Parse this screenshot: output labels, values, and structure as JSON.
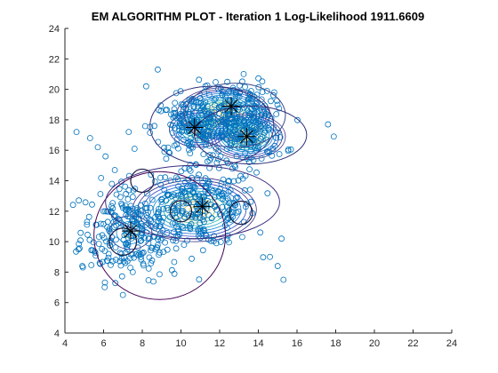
{
  "chart_data": {
    "type": "scatter",
    "title": "EM ALGORITHM PLOT - Iteration 1 Log-Likelihood 1911.6609",
    "xlabel": "",
    "ylabel": "",
    "xlim": [
      4,
      24
    ],
    "ylim": [
      4,
      24
    ],
    "xticks": [
      4,
      6,
      8,
      10,
      12,
      14,
      16,
      18,
      20,
      22,
      24
    ],
    "yticks": [
      4,
      6,
      8,
      10,
      12,
      14,
      16,
      18,
      20,
      22,
      24
    ],
    "grid": false,
    "legend": "none",
    "marker_color": "#0072BD",
    "clusters": [
      {
        "cx": 7.4,
        "cy": 10.7,
        "sx": 1.3,
        "sy": 1.6,
        "n": 260
      },
      {
        "cx": 11.1,
        "cy": 12.3,
        "sx": 1.4,
        "sy": 1.3,
        "n": 240
      },
      {
        "cx": 10.7,
        "cy": 17.5,
        "sx": 1.1,
        "sy": 1.0,
        "n": 180
      },
      {
        "cx": 12.6,
        "cy": 18.9,
        "sx": 1.0,
        "sy": 0.9,
        "n": 160
      },
      {
        "cx": 13.4,
        "cy": 16.9,
        "sx": 1.0,
        "sy": 0.9,
        "n": 150
      }
    ],
    "outliers": [
      [
        4.6,
        17.2
      ],
      [
        5.3,
        16.8
      ],
      [
        5.7,
        16.2
      ],
      [
        6.1,
        15.6
      ],
      [
        7.3,
        17.2
      ],
      [
        7.6,
        16.1
      ],
      [
        8.8,
        21.3
      ],
      [
        8.2,
        20.2
      ],
      [
        17.6,
        17.7
      ],
      [
        17.9,
        16.9
      ],
      [
        15.3,
        7.5
      ],
      [
        15.0,
        8.4
      ],
      [
        14.6,
        9.0
      ],
      [
        15.2,
        10.2
      ],
      [
        4.7,
        9.5
      ],
      [
        5.8,
        8.6
      ],
      [
        4.9,
        8.4
      ],
      [
        14.1,
        10.6
      ]
    ],
    "component_means": [
      {
        "x": 7.4,
        "y": 10.7
      },
      {
        "x": 11.1,
        "y": 12.3
      },
      {
        "x": 10.7,
        "y": 17.5
      },
      {
        "x": 12.6,
        "y": 18.9
      },
      {
        "x": 13.4,
        "y": 16.9
      }
    ],
    "ellipses": [
      {
        "cx": 8.9,
        "cy": 10.4,
        "rx": 3.4,
        "ry": 4.2,
        "color": "#440154"
      },
      {
        "cx": 10.6,
        "cy": 12.6,
        "rx": 4.5,
        "ry": 2.4,
        "angle": 0,
        "color": "#3b2f80"
      },
      {
        "cx": 11.6,
        "cy": 17.6,
        "rx": 3.2,
        "ry": 2.6,
        "color": "#30307f"
      },
      {
        "cx": 12.8,
        "cy": 18.3,
        "rx": 2.6,
        "ry": 2.1,
        "color": "#3a4a8c"
      },
      {
        "cx": 13.6,
        "cy": 17.0,
        "rx": 2.9,
        "ry": 1.9,
        "color": "#2c2f7a"
      }
    ],
    "contour_sets": [
      {
        "cx": 10.7,
        "cy": 12.1,
        "rx": 3.2,
        "ry": 2.1,
        "levels": 12
      },
      {
        "cx": 12.2,
        "cy": 18.4,
        "rx": 2.4,
        "ry": 1.7,
        "levels": 14
      },
      {
        "cx": 13.4,
        "cy": 16.9,
        "rx": 2.0,
        "ry": 1.5,
        "levels": 12
      },
      {
        "cx": 10.9,
        "cy": 17.4,
        "rx": 1.5,
        "ry": 1.2,
        "levels": 8
      },
      {
        "cx": 7.4,
        "cy": 10.6,
        "rx": 1.1,
        "ry": 1.1,
        "levels": 3
      }
    ],
    "small_circles": [
      {
        "cx": 8.0,
        "cy": 14.0,
        "r": 0.6
      },
      {
        "cx": 10.0,
        "cy": 12.0,
        "r": 0.55
      },
      {
        "cx": 13.1,
        "cy": 11.9,
        "r": 0.6
      },
      {
        "cx": 7.0,
        "cy": 10.0,
        "r": 0.7
      }
    ]
  }
}
